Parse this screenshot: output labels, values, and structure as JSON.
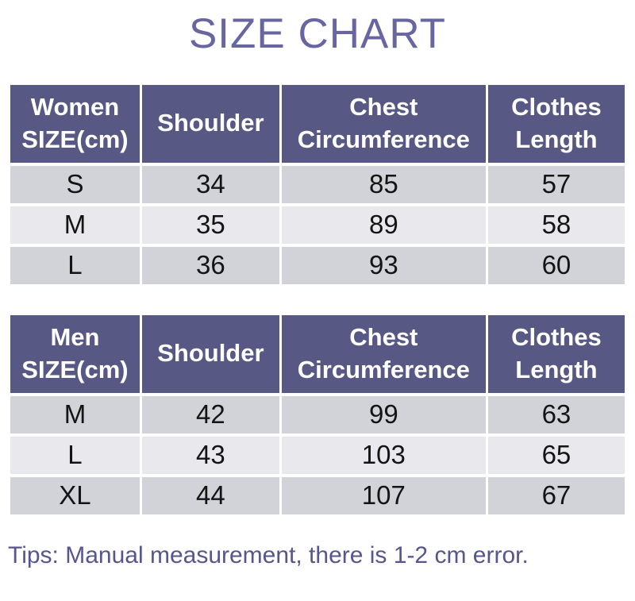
{
  "title": "SIZE CHART",
  "tables": [
    {
      "name": "women",
      "headers": [
        "Women\nSIZE(cm)",
        "Shoulder",
        "Chest\nCircumference",
        "Clothes\nLength"
      ],
      "rows": [
        [
          "S",
          "34",
          "85",
          "57"
        ],
        [
          "M",
          "35",
          "89",
          "58"
        ],
        [
          "L",
          "36",
          "93",
          "60"
        ]
      ]
    },
    {
      "name": "men",
      "headers": [
        "Men\nSIZE(cm)",
        "Shoulder",
        "Chest\nCircumference",
        "Clothes\nLength"
      ],
      "rows": [
        [
          "M",
          "42",
          "99",
          "63"
        ],
        [
          "L",
          "43",
          "103",
          "65"
        ],
        [
          "XL",
          "44",
          "107",
          "67"
        ]
      ]
    }
  ],
  "tips": "Tips: Manual measurement, there is 1-2 cm error.",
  "colors": {
    "header_background": "#575884",
    "header_text": "#ffffff",
    "row_dark": "#d2d2d9",
    "row_light": "#e9e9ed",
    "title_text": "#6766a0",
    "tips_text": "#56558e",
    "cell_text": "#141414"
  }
}
